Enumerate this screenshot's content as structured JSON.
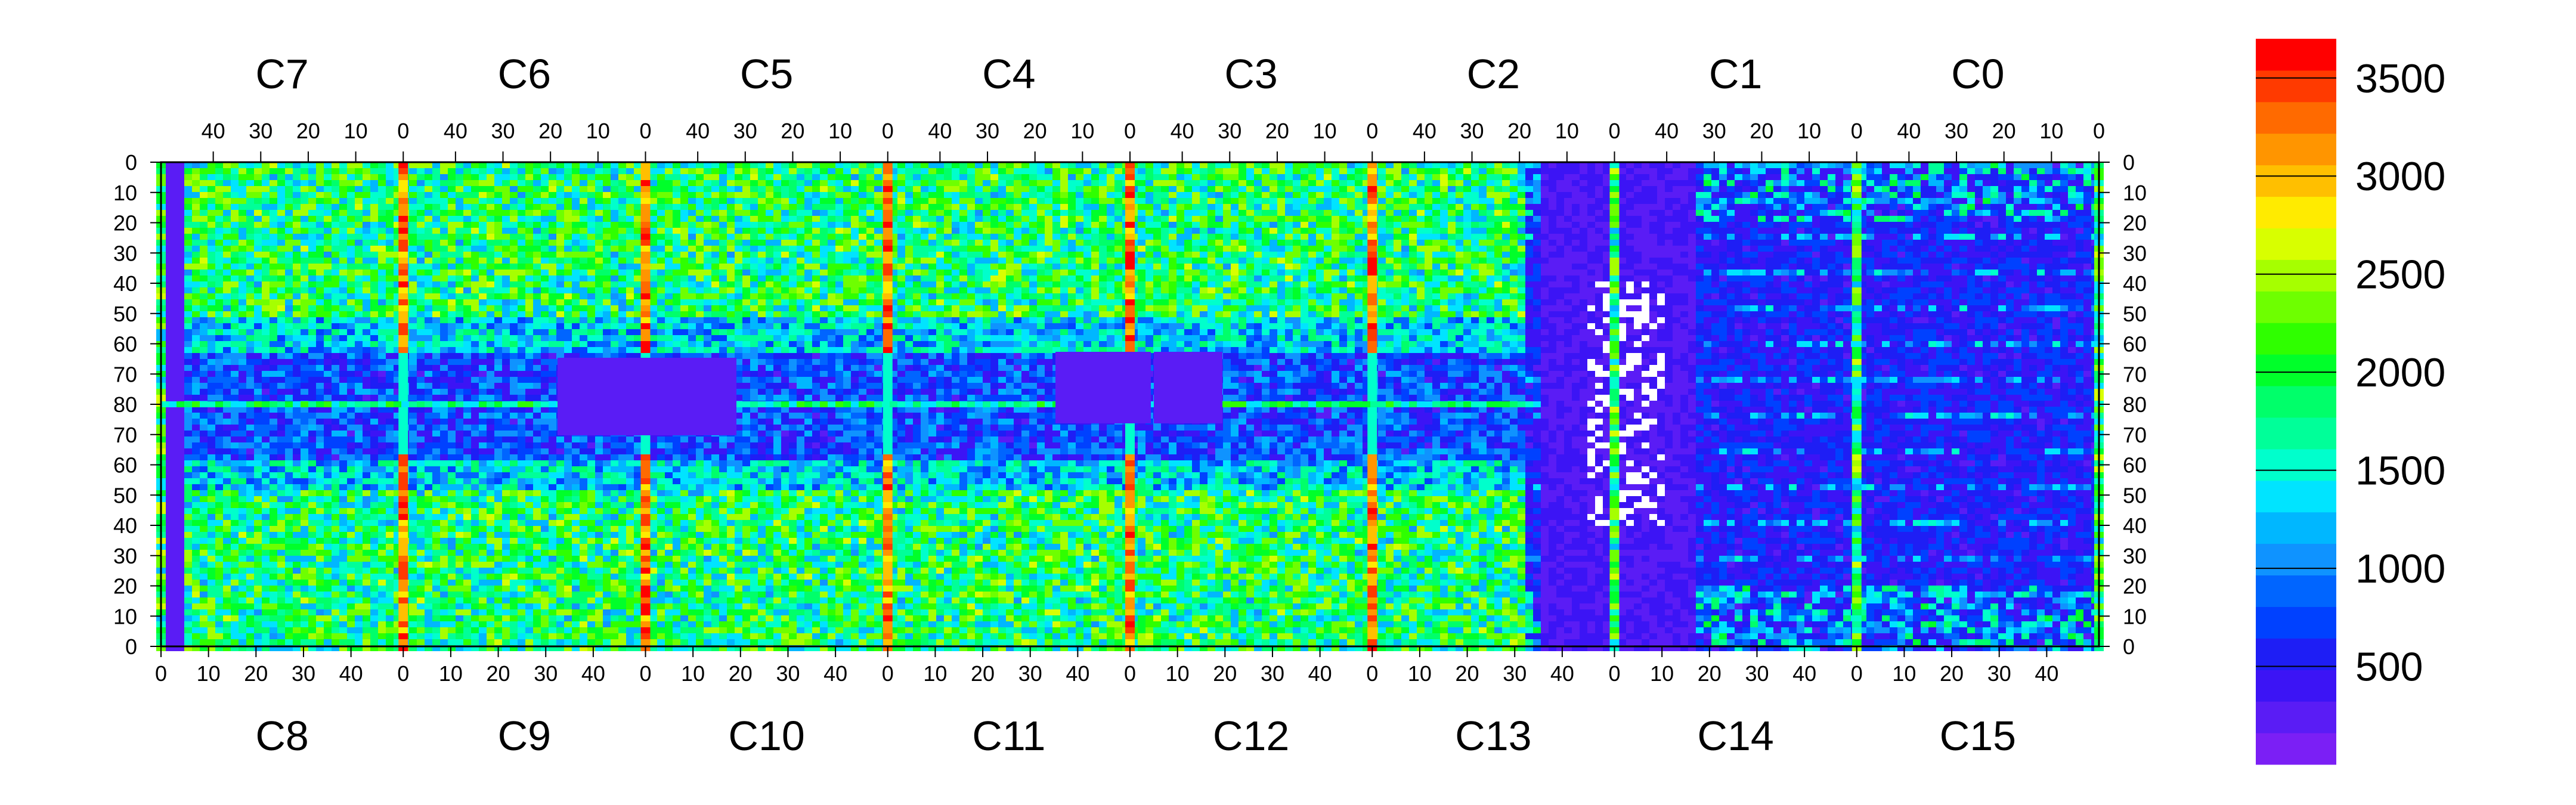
{
  "chart_data": {
    "type": "heatmap",
    "title": "",
    "xlabel": "",
    "ylabel": "",
    "color_range": [
      0,
      3700
    ],
    "colorbar_ticks": [
      500,
      1000,
      1500,
      2000,
      2500,
      3000,
      3500
    ],
    "colorbar_labels": [
      "500",
      "1000",
      "1500",
      "2000",
      "2500",
      "3000",
      "3500"
    ],
    "colors": [
      "#7b1ff5",
      "#5a1cf5",
      "#3c14f5",
      "#1e1ef5",
      "#0041ff",
      "#0065ff",
      "#0f93ff",
      "#00b7ff",
      "#00e4ff",
      "#00ffcc",
      "#00ff99",
      "#00ff6a",
      "#00ff2a",
      "#2fff00",
      "#6eff00",
      "#a6ff00",
      "#d8ff00",
      "#ffeb00",
      "#ffbf00",
      "#ff9500",
      "#ff6a00",
      "#ff3a00",
      "#ff0000"
    ],
    "top_chips": [
      "C7",
      "C6",
      "C5",
      "C4",
      "C3",
      "C2",
      "C1",
      "C0"
    ],
    "bottom_chips": [
      "C8",
      "C9",
      "C10",
      "C11",
      "C12",
      "C13",
      "C14",
      "C15"
    ],
    "top_axis_ticks": [
      "40",
      "30",
      "20",
      "10",
      "0"
    ],
    "bottom_axis_ticks": [
      "0",
      "10",
      "20",
      "30",
      "40"
    ],
    "y_axis_ticks": [
      "0",
      "10",
      "20",
      "30",
      "40",
      "50",
      "60",
      "70",
      "80",
      "70",
      "60",
      "50",
      "40",
      "30",
      "20",
      "10",
      "0"
    ],
    "chip_range": [
      0,
      51
    ],
    "row_range": [
      0,
      80
    ]
  }
}
